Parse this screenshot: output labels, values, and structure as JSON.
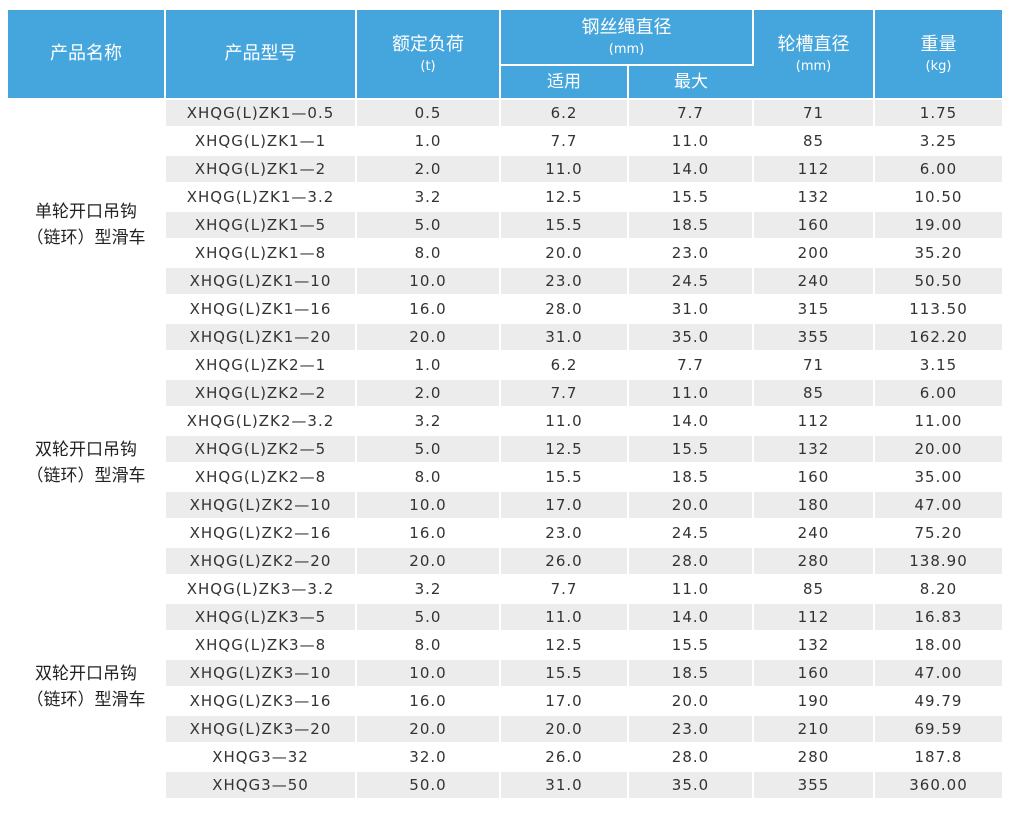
{
  "headers": {
    "name": "产品名称",
    "model": "产品型号",
    "load": "额定负荷",
    "load_unit": "(t)",
    "rope": "钢丝绳直径",
    "rope_unit": "(mm)",
    "rope_fit": "适用",
    "rope_max": "最大",
    "groove": "轮槽直径",
    "groove_unit": "(mm)",
    "weight": "重量",
    "weight_unit": "(kg)"
  },
  "groups": [
    {
      "name_line1": "单轮开口吊钩",
      "name_line2": "（链环）型滑车",
      "rows": [
        {
          "model": "XHQG(L)ZK1—0.5",
          "load": "0.5",
          "fit": "6.2",
          "max": "7.7",
          "groove": "71",
          "weight": "1.75"
        },
        {
          "model": "XHQG(L)ZK1—1",
          "load": "1.0",
          "fit": "7.7",
          "max": "11.0",
          "groove": "85",
          "weight": "3.25"
        },
        {
          "model": "XHQG(L)ZK1—2",
          "load": "2.0",
          "fit": "11.0",
          "max": "14.0",
          "groove": "112",
          "weight": "6.00"
        },
        {
          "model": "XHQG(L)ZK1—3.2",
          "load": "3.2",
          "fit": "12.5",
          "max": "15.5",
          "groove": "132",
          "weight": "10.50"
        },
        {
          "model": "XHQG(L)ZK1—5",
          "load": "5.0",
          "fit": "15.5",
          "max": "18.5",
          "groove": "160",
          "weight": "19.00"
        },
        {
          "model": "XHQG(L)ZK1—8",
          "load": "8.0",
          "fit": "20.0",
          "max": "23.0",
          "groove": "200",
          "weight": "35.20"
        },
        {
          "model": "XHQG(L)ZK1—10",
          "load": "10.0",
          "fit": "23.0",
          "max": "24.5",
          "groove": "240",
          "weight": "50.50"
        },
        {
          "model": "XHQG(L)ZK1—16",
          "load": "16.0",
          "fit": "28.0",
          "max": "31.0",
          "groove": "315",
          "weight": "113.50"
        },
        {
          "model": "XHQG(L)ZK1—20",
          "load": "20.0",
          "fit": "31.0",
          "max": "35.0",
          "groove": "355",
          "weight": "162.20"
        }
      ]
    },
    {
      "name_line1": "双轮开口吊钩",
      "name_line2": "（链环）型滑车",
      "rows": [
        {
          "model": "XHQG(L)ZK2—1",
          "load": "1.0",
          "fit": "6.2",
          "max": "7.7",
          "groove": "71",
          "weight": "3.15"
        },
        {
          "model": "XHQG(L)ZK2—2",
          "load": "2.0",
          "fit": "7.7",
          "max": "11.0",
          "groove": "85",
          "weight": "6.00"
        },
        {
          "model": "XHQG(L)ZK2—3.2",
          "load": "3.2",
          "fit": "11.0",
          "max": "14.0",
          "groove": "112",
          "weight": "11.00"
        },
        {
          "model": "XHQG(L)ZK2—5",
          "load": "5.0",
          "fit": "12.5",
          "max": "15.5",
          "groove": "132",
          "weight": "20.00"
        },
        {
          "model": "XHQG(L)ZK2—8",
          "load": "8.0",
          "fit": "15.5",
          "max": "18.5",
          "groove": "160",
          "weight": "35.00"
        },
        {
          "model": "XHQG(L)ZK2—10",
          "load": "10.0",
          "fit": "17.0",
          "max": "20.0",
          "groove": "180",
          "weight": "47.00"
        },
        {
          "model": "XHQG(L)ZK2—16",
          "load": "16.0",
          "fit": "23.0",
          "max": "24.5",
          "groove": "240",
          "weight": "75.20"
        },
        {
          "model": "XHQG(L)ZK2—20",
          "load": "20.0",
          "fit": "26.0",
          "max": "28.0",
          "groove": "280",
          "weight": "138.90"
        }
      ]
    },
    {
      "name_line1": "双轮开口吊钩",
      "name_line2": "（链环）型滑车",
      "rows": [
        {
          "model": "XHQG(L)ZK3—3.2",
          "load": "3.2",
          "fit": "7.7",
          "max": "11.0",
          "groove": "85",
          "weight": "8.20"
        },
        {
          "model": "XHQG(L)ZK3—5",
          "load": "5.0",
          "fit": "11.0",
          "max": "14.0",
          "groove": "112",
          "weight": "16.83"
        },
        {
          "model": "XHQG(L)ZK3—8",
          "load": "8.0",
          "fit": "12.5",
          "max": "15.5",
          "groove": "132",
          "weight": "18.00"
        },
        {
          "model": "XHQG(L)ZK3—10",
          "load": "10.0",
          "fit": "15.5",
          "max": "18.5",
          "groove": "160",
          "weight": "47.00"
        },
        {
          "model": "XHQG(L)ZK3—16",
          "load": "16.0",
          "fit": "17.0",
          "max": "20.0",
          "groove": "190",
          "weight": "49.79"
        },
        {
          "model": "XHQG(L)ZK3—20",
          "load": "20.0",
          "fit": "20.0",
          "max": "23.0",
          "groove": "210",
          "weight": "69.59"
        },
        {
          "model": "XHQG3—32",
          "load": "32.0",
          "fit": "26.0",
          "max": "28.0",
          "groove": "280",
          "weight": "187.8"
        },
        {
          "model": "XHQG3—50",
          "load": "50.0",
          "fit": "31.0",
          "max": "35.0",
          "groove": "355",
          "weight": "360.00"
        }
      ]
    }
  ],
  "colors": {
    "header_bg": "#45a6dd",
    "row_shade": "#ececec"
  }
}
